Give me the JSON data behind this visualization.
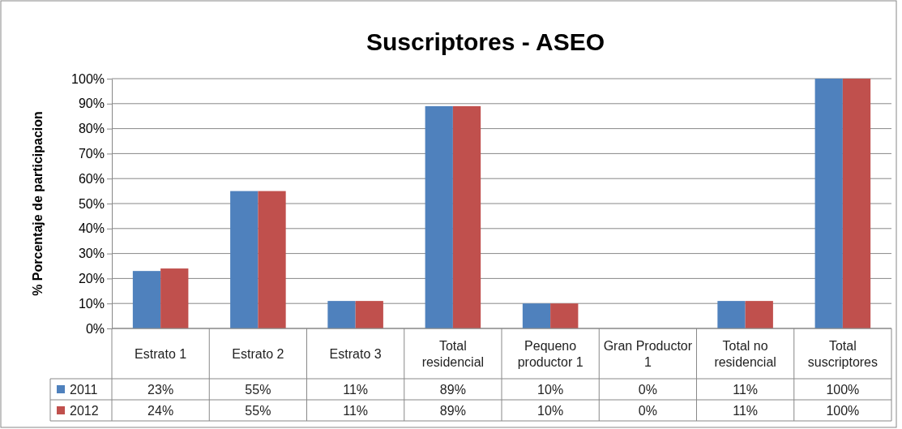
{
  "chart_data": {
    "type": "bar",
    "title": "Suscriptores - ASEO",
    "ylabel": "% Porcentaje de participacion",
    "categories": [
      "Estrato 1",
      "Estrato 2",
      "Estrato 3",
      "Total residencial",
      "Pequeno productor 1",
      "Gran Productor 1",
      "Total no residencial",
      "Total suscriptores"
    ],
    "series": [
      {
        "name": "2011",
        "color": "#4f81bd",
        "values": [
          23,
          55,
          11,
          89,
          10,
          0,
          11,
          100
        ],
        "value_labels": [
          "23%",
          "55%",
          "11%",
          "89%",
          "10%",
          "0%",
          "11%",
          "100%"
        ]
      },
      {
        "name": "2012",
        "color": "#c0504d",
        "values": [
          24,
          55,
          11,
          89,
          10,
          0,
          11,
          100
        ],
        "value_labels": [
          "24%",
          "55%",
          "11%",
          "89%",
          "10%",
          "0%",
          "11%",
          "100%"
        ]
      }
    ],
    "ylim": [
      0,
      100
    ],
    "yticks": [
      {
        "value": 0,
        "label": "0%"
      },
      {
        "value": 10,
        "label": "10%"
      },
      {
        "value": 20,
        "label": "20%"
      },
      {
        "value": 30,
        "label": "30%"
      },
      {
        "value": 40,
        "label": "40%"
      },
      {
        "value": 50,
        "label": "50%"
      },
      {
        "value": 60,
        "label": "60%"
      },
      {
        "value": 70,
        "label": "70%"
      },
      {
        "value": 80,
        "label": "80%"
      },
      {
        "value": 90,
        "label": "90%"
      },
      {
        "value": 100,
        "label": "100%"
      }
    ],
    "grid": "y",
    "legend": "bottom"
  }
}
